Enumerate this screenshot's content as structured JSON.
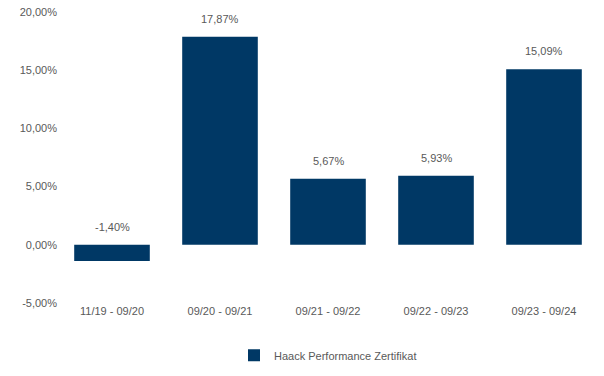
{
  "chart_data": {
    "type": "bar",
    "categories": [
      "11/19 - 09/20",
      "09/20 - 09/21",
      "09/21 - 09/22",
      "09/22 - 09/23",
      "09/23 - 09/24"
    ],
    "series": [
      {
        "name": "Haack Performance Zertifikat",
        "color": "#003865",
        "values": [
          -1.4,
          17.87,
          5.67,
          5.93,
          15.09
        ],
        "value_labels": [
          "-1,40%",
          "17,87%",
          "5,67%",
          "5,93%",
          "15,09%"
        ]
      }
    ],
    "ylim": [
      -5,
      20
    ],
    "yticks": [
      {
        "value": -5,
        "label": "-5,00%"
      },
      {
        "value": 0,
        "label": "0,00%"
      },
      {
        "value": 5,
        "label": "5,00%"
      },
      {
        "value": 10,
        "label": "10,00%"
      },
      {
        "value": 15,
        "label": "15,00%"
      },
      {
        "value": 20,
        "label": "20,00%"
      }
    ],
    "grid": false,
    "data_labels": true,
    "legend": "bottom"
  }
}
